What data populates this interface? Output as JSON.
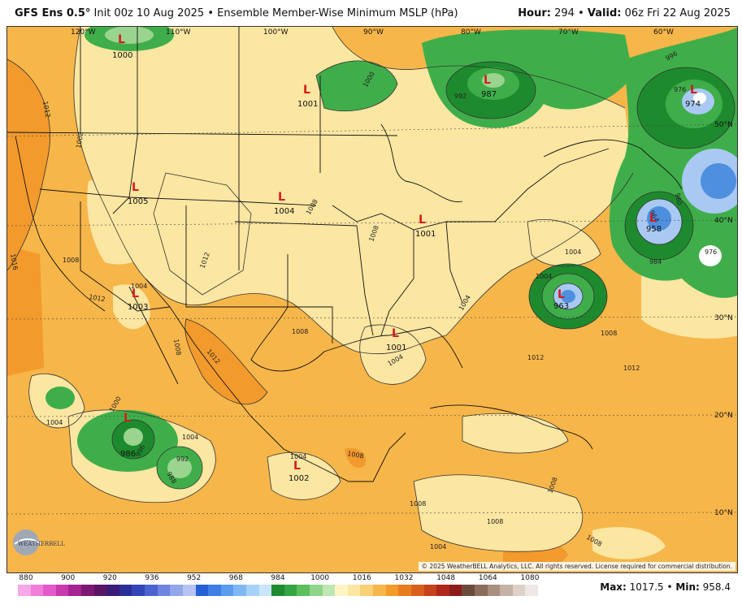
{
  "header": {
    "model": "GFS Ens 0.5°",
    "init": "Init 00z 10 Aug 2025",
    "product": "Ensemble Member-Wise Minimum MSLP (hPa)",
    "hour_label": "Hour:",
    "hour": "294",
    "valid_label": "Valid:",
    "valid": "06z Fri 22 Aug 2025"
  },
  "colors": {
    "ocean_base": "#f7b649",
    "land_light": "#fbe6a2",
    "land_mid": "#f9cf78",
    "orange": "#f39a2c",
    "green_light": "#9ad48f",
    "green": "#3fae4a",
    "green_dark": "#1e8a2e",
    "blue_light": "#a9c9f2",
    "blue": "#4f8fe0",
    "low_marker": "#d7191c"
  },
  "lon_labels": [
    "120°W",
    "110°W",
    "100°W",
    "90°W",
    "80°W",
    "70°W",
    "60°W"
  ],
  "lat_labels": [
    "50°N",
    "40°N",
    "30°N",
    "20°N",
    "10°N"
  ],
  "lows": [
    {
      "letter": "L",
      "value": "1000"
    },
    {
      "letter": "L",
      "value": "1001"
    },
    {
      "letter": "L",
      "value": "987"
    },
    {
      "letter": "L",
      "value": "974"
    },
    {
      "letter": "L",
      "value": "1005"
    },
    {
      "letter": "L",
      "value": "1004"
    },
    {
      "letter": "L",
      "value": "1001"
    },
    {
      "letter": "L",
      "value": "958"
    },
    {
      "letter": "L",
      "value": "1003"
    },
    {
      "letter": "L",
      "value": "963"
    },
    {
      "letter": "L",
      "value": "1001"
    },
    {
      "letter": "L",
      "value": "986"
    },
    {
      "letter": "L",
      "value": "1002"
    }
  ],
  "contour_labels": [
    "1012",
    "1008",
    "1016",
    "1008",
    "1004",
    "1004",
    "1008",
    "1012",
    "1008",
    "1004",
    "1004",
    "1008",
    "1004",
    "1000",
    "996",
    "992",
    "988",
    "1012",
    "1008",
    "1004",
    "1008",
    "1008",
    "1012",
    "1008",
    "1004",
    "1004",
    "1000",
    "992",
    "976",
    "996",
    "984",
    "964",
    "960",
    "976",
    "1012",
    "1008",
    "1004",
    "1012",
    "1008",
    "1008"
  ],
  "colorbar": {
    "ticks": [
      "880",
      "900",
      "920",
      "936",
      "952",
      "968",
      "984",
      "1000",
      "1016",
      "1032",
      "1048",
      "1064",
      "1080"
    ],
    "colors": [
      "#f7a8e6",
      "#ef7fd9",
      "#e35ac8",
      "#c93aaf",
      "#a52392",
      "#7d1873",
      "#5a1563",
      "#3b1a78",
      "#2a2f97",
      "#3346b8",
      "#4a63cf",
      "#6f84df",
      "#93a6ea",
      "#b7c3f2",
      "#2560d6",
      "#3d7fe4",
      "#5c9cef",
      "#80b8f5",
      "#a5d2f8",
      "#c9e6fb",
      "#1f8a2e",
      "#35a543",
      "#5cbf5d",
      "#8fd48a",
      "#bfe6b3",
      "#fff5c4",
      "#fbe6a2",
      "#f9cf78",
      "#f7b649",
      "#f39a2c",
      "#e87d1f",
      "#d9601c",
      "#c6421c",
      "#b0261c",
      "#8c1b1b",
      "#6b4b3a",
      "#8a6d5a",
      "#a88f80",
      "#c4b2a7",
      "#ddd1ca",
      "#eee8e4"
    ]
  },
  "maxmin": {
    "max_label": "Max:",
    "max": "1017.5",
    "min_label": "Min:",
    "min": "958.4"
  },
  "copyright": "© 2025 WeatherBELL Analytics, LLC. All rights reserved. License required for commercial distribution.",
  "logo_text": "WEATHERBELL"
}
